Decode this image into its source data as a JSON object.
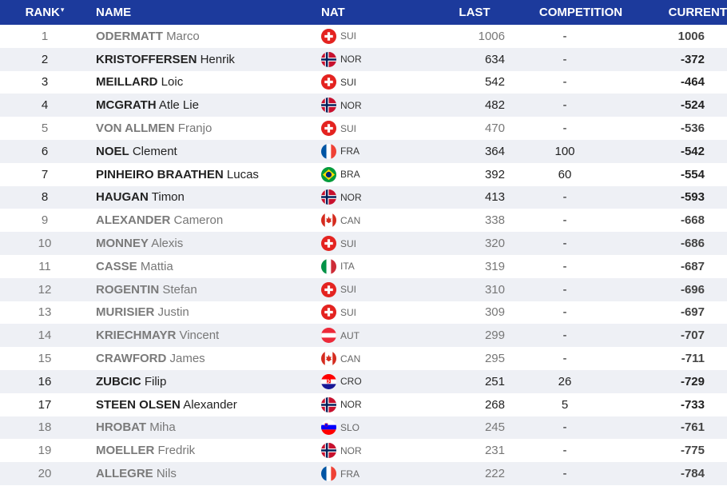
{
  "header": {
    "rank": "RANK",
    "sort_indicator": "▾",
    "name": "NAME",
    "nat": "NAT",
    "last": "LAST",
    "competition": "COMPETITION",
    "current": "CURRENT"
  },
  "rows": [
    {
      "rank": "1",
      "last_name": "ODERMATT",
      "first_name": "Marco",
      "nat": "SUI",
      "last": "1006",
      "comp": "-",
      "current": "1006",
      "muted": true
    },
    {
      "rank": "2",
      "last_name": "KRISTOFFERSEN",
      "first_name": "Henrik",
      "nat": "NOR",
      "last": "634",
      "comp": "-",
      "current": "-372",
      "muted": false
    },
    {
      "rank": "3",
      "last_name": "MEILLARD",
      "first_name": "Loic",
      "nat": "SUI",
      "last": "542",
      "comp": "-",
      "current": "-464",
      "muted": false
    },
    {
      "rank": "4",
      "last_name": "MCGRATH",
      "first_name": "Atle Lie",
      "nat": "NOR",
      "last": "482",
      "comp": "-",
      "current": "-524",
      "muted": false
    },
    {
      "rank": "5",
      "last_name": "VON ALLMEN",
      "first_name": "Franjo",
      "nat": "SUI",
      "last": "470",
      "comp": "-",
      "current": "-536",
      "muted": true
    },
    {
      "rank": "6",
      "last_name": "NOEL",
      "first_name": "Clement",
      "nat": "FRA",
      "last": "364",
      "comp": "100",
      "current": "-542",
      "muted": false
    },
    {
      "rank": "7",
      "last_name": "PINHEIRO BRAATHEN",
      "first_name": "Lucas",
      "nat": "BRA",
      "last": "392",
      "comp": "60",
      "current": "-554",
      "muted": false
    },
    {
      "rank": "8",
      "last_name": "HAUGAN",
      "first_name": "Timon",
      "nat": "NOR",
      "last": "413",
      "comp": "-",
      "current": "-593",
      "muted": false
    },
    {
      "rank": "9",
      "last_name": "ALEXANDER",
      "first_name": "Cameron",
      "nat": "CAN",
      "last": "338",
      "comp": "-",
      "current": "-668",
      "muted": true
    },
    {
      "rank": "10",
      "last_name": "MONNEY",
      "first_name": "Alexis",
      "nat": "SUI",
      "last": "320",
      "comp": "-",
      "current": "-686",
      "muted": true
    },
    {
      "rank": "11",
      "last_name": "CASSE",
      "first_name": "Mattia",
      "nat": "ITA",
      "last": "319",
      "comp": "-",
      "current": "-687",
      "muted": true
    },
    {
      "rank": "12",
      "last_name": "ROGENTIN",
      "first_name": "Stefan",
      "nat": "SUI",
      "last": "310",
      "comp": "-",
      "current": "-696",
      "muted": true
    },
    {
      "rank": "13",
      "last_name": "MURISIER",
      "first_name": "Justin",
      "nat": "SUI",
      "last": "309",
      "comp": "-",
      "current": "-697",
      "muted": true
    },
    {
      "rank": "14",
      "last_name": "KRIECHMAYR",
      "first_name": "Vincent",
      "nat": "AUT",
      "last": "299",
      "comp": "-",
      "current": "-707",
      "muted": true
    },
    {
      "rank": "15",
      "last_name": "CRAWFORD",
      "first_name": "James",
      "nat": "CAN",
      "last": "295",
      "comp": "-",
      "current": "-711",
      "muted": true
    },
    {
      "rank": "16",
      "last_name": "ZUBCIC",
      "first_name": "Filip",
      "nat": "CRO",
      "last": "251",
      "comp": "26",
      "current": "-729",
      "muted": false
    },
    {
      "rank": "17",
      "last_name": "STEEN OLSEN",
      "first_name": "Alexander",
      "nat": "NOR",
      "last": "268",
      "comp": "5",
      "current": "-733",
      "muted": false
    },
    {
      "rank": "18",
      "last_name": "HROBAT",
      "first_name": "Miha",
      "nat": "SLO",
      "last": "245",
      "comp": "-",
      "current": "-761",
      "muted": true
    },
    {
      "rank": "19",
      "last_name": "MOELLER",
      "first_name": "Fredrik",
      "nat": "NOR",
      "last": "231",
      "comp": "-",
      "current": "-775",
      "muted": true
    },
    {
      "rank": "20",
      "last_name": "ALLEGRE",
      "first_name": "Nils",
      "nat": "FRA",
      "last": "222",
      "comp": "-",
      "current": "-784",
      "muted": true
    }
  ],
  "colors": {
    "header_bg": "#1c3a9c",
    "row_alt_bg": "#eef0f5"
  }
}
